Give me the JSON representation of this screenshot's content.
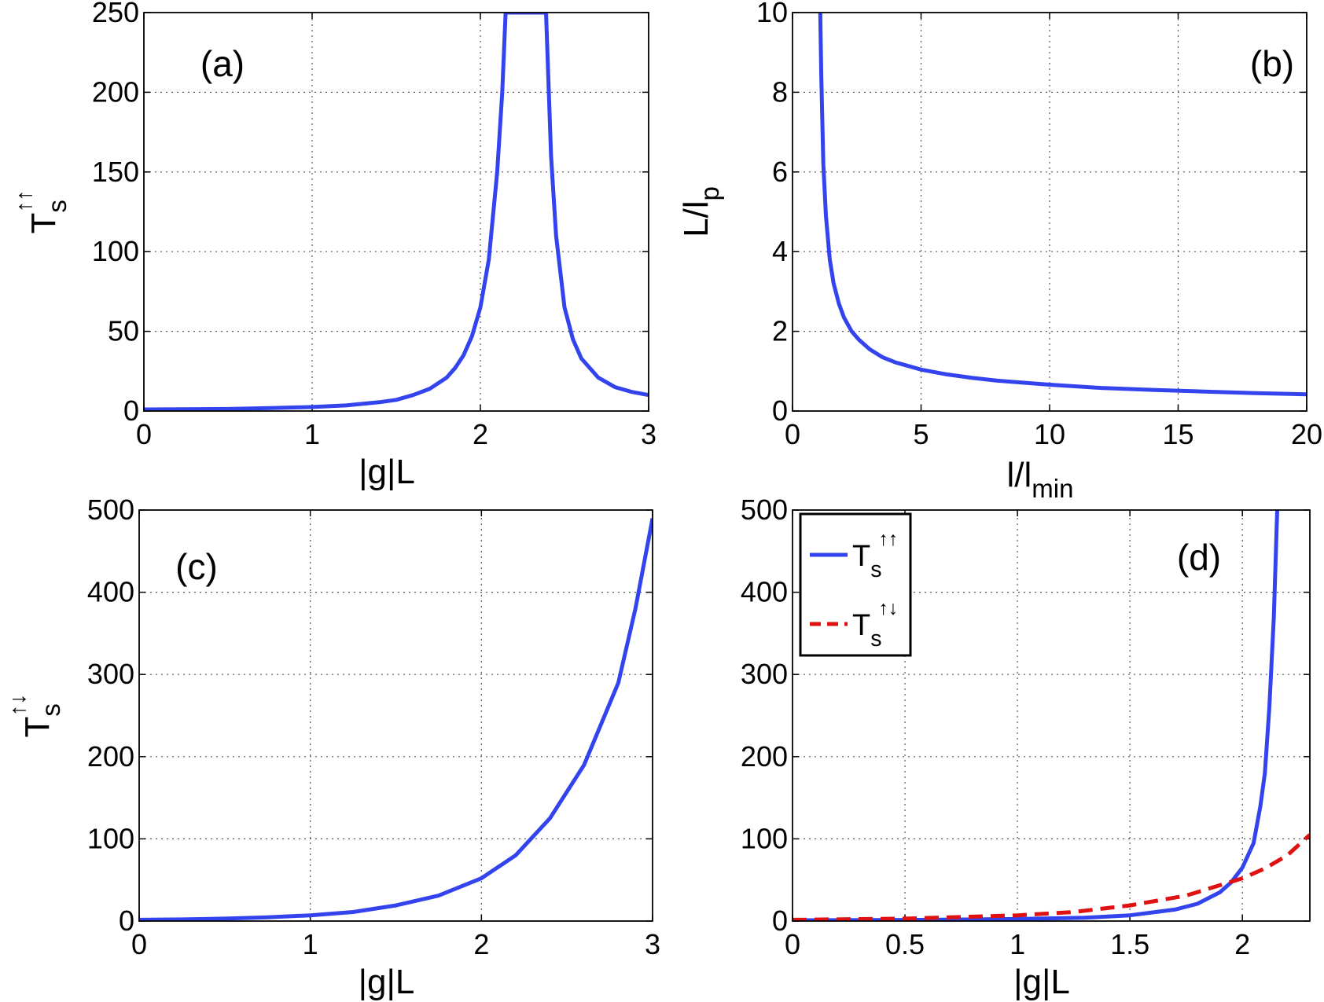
{
  "figure": {
    "colors": {
      "solid": "#3344ee",
      "dashed": "#e01111",
      "grid": "#555555",
      "frame": "#000000"
    }
  },
  "chart_data": [
    {
      "id": "a",
      "type": "line",
      "panel_label": "(a)",
      "xlabel": "|g|L",
      "ylabel": {
        "base": "T",
        "sub": "s",
        "sup": "↑↑"
      },
      "xlim": [
        0,
        3
      ],
      "ylim": [
        0,
        250
      ],
      "xticks": [
        "0",
        "1",
        "2",
        "3"
      ],
      "yticks": [
        "0",
        "50",
        "100",
        "150",
        "200",
        "250"
      ],
      "grid": true,
      "series": [
        {
          "style": "solid",
          "x": [
            0,
            0.25,
            0.5,
            0.75,
            1.0,
            1.2,
            1.4,
            1.5,
            1.6,
            1.7,
            1.8,
            1.85,
            1.9,
            1.95,
            2.0,
            2.05,
            2.1,
            2.13,
            2.15,
            2.39,
            2.42,
            2.45,
            2.5,
            2.55,
            2.6,
            2.7,
            2.8,
            2.9,
            3.0
          ],
          "y": [
            1,
            1.1,
            1.3,
            1.8,
            2.5,
            3.5,
            5.5,
            7,
            10,
            14,
            21,
            27,
            35,
            47,
            65,
            95,
            150,
            200,
            250,
            250,
            160,
            110,
            65,
            45,
            33,
            21,
            15,
            12,
            10
          ]
        }
      ]
    },
    {
      "id": "b",
      "type": "line",
      "panel_label": "(b)",
      "xlabel": {
        "base": "l/l",
        "sub": "min"
      },
      "ylabel": {
        "base": "L/l",
        "sub": "p"
      },
      "xlim": [
        0,
        20
      ],
      "ylim": [
        0,
        10
      ],
      "xticks": [
        "0",
        "5",
        "10",
        "15",
        "20"
      ],
      "yticks": [
        "0",
        "2",
        "4",
        "6",
        "8",
        "10"
      ],
      "grid": true,
      "series": [
        {
          "style": "solid",
          "x": [
            1.08,
            1.12,
            1.2,
            1.3,
            1.45,
            1.6,
            1.8,
            2.0,
            2.3,
            2.6,
            3.0,
            3.5,
            4.0,
            5.0,
            6.0,
            7.0,
            8.0,
            10.0,
            12.0,
            14.0,
            16.0,
            18.0,
            20.0
          ],
          "y": [
            10,
            8.4,
            6.2,
            4.9,
            3.8,
            3.2,
            2.7,
            2.35,
            2.0,
            1.78,
            1.55,
            1.35,
            1.22,
            1.04,
            0.92,
            0.83,
            0.76,
            0.66,
            0.58,
            0.53,
            0.49,
            0.45,
            0.42
          ]
        }
      ]
    },
    {
      "id": "c",
      "type": "line",
      "panel_label": "(c)",
      "xlabel": "|g|L",
      "ylabel": {
        "base": "T",
        "sub": "s",
        "sup": "↑↓"
      },
      "xlim": [
        0,
        3
      ],
      "ylim": [
        0,
        500
      ],
      "xticks": [
        "0",
        "1",
        "2",
        "3"
      ],
      "yticks": [
        "0",
        "100",
        "200",
        "300",
        "400",
        "500"
      ],
      "grid": true,
      "series": [
        {
          "style": "solid",
          "x": [
            0,
            0.25,
            0.5,
            0.75,
            1.0,
            1.25,
            1.5,
            1.75,
            2.0,
            2.2,
            2.4,
            2.6,
            2.8,
            2.9,
            3.0
          ],
          "y": [
            1.5,
            2,
            3,
            4.5,
            7,
            11,
            19,
            31,
            52,
            80,
            125,
            190,
            290,
            380,
            490
          ]
        }
      ]
    },
    {
      "id": "d",
      "type": "line",
      "panel_label": "(d)",
      "xlabel": "|g|L",
      "ylabel": "",
      "xlim": [
        0,
        2.3
      ],
      "ylim": [
        0,
        500
      ],
      "xticks": [
        "0",
        "0.5",
        "1",
        "1.5",
        "2"
      ],
      "xtick_values": [
        0,
        0.5,
        1,
        1.5,
        2
      ],
      "yticks": [
        "0",
        "100",
        "200",
        "300",
        "400",
        "500"
      ],
      "grid": true,
      "legend": {
        "placement": "top-left"
      },
      "series": [
        {
          "legend": {
            "base": "T",
            "sub": "s",
            "sup": "↑↑"
          },
          "style": "solid",
          "x": [
            0,
            0.5,
            1.0,
            1.3,
            1.5,
            1.7,
            1.8,
            1.9,
            1.95,
            2.0,
            2.05,
            2.08,
            2.1,
            2.12,
            2.14,
            2.155
          ],
          "y": [
            1,
            1.3,
            2.5,
            4,
            7,
            14,
            21,
            35,
            47,
            65,
            95,
            140,
            180,
            260,
            370,
            500
          ]
        },
        {
          "legend": {
            "base": "T",
            "sub": "s",
            "sup": "↑↓"
          },
          "style": "dashed",
          "x": [
            0,
            0.5,
            1.0,
            1.25,
            1.5,
            1.75,
            2.0,
            2.1,
            2.2,
            2.3
          ],
          "y": [
            1.5,
            3,
            7,
            11,
            19,
            31,
            52,
            64,
            80,
            105
          ]
        }
      ]
    }
  ]
}
